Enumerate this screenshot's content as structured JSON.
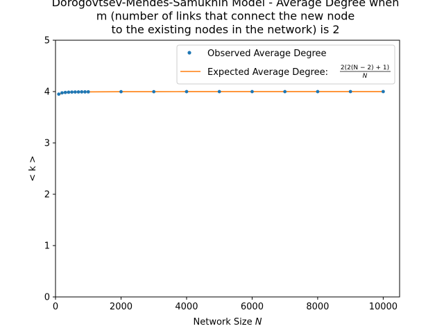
{
  "chart_data": {
    "type": "line",
    "title_lines": [
      "Dorogovtsev-Mendes-Samukhin Model - Average Degree when",
      "m (number of links that connect the new node",
      "to the existing nodes in the network) is 2"
    ],
    "xlabel": "Network Size",
    "xlabel_var": "N",
    "ylabel": "< k >",
    "xlim": [
      0,
      10500
    ],
    "ylim": [
      0,
      5
    ],
    "xticks": [
      0,
      2000,
      4000,
      6000,
      8000,
      10000
    ],
    "yticks": [
      0,
      1,
      2,
      3,
      4,
      5
    ],
    "legend_position": "top-right",
    "series": [
      {
        "name": "Observed Average Degree",
        "kind": "scatter",
        "color": "#1f77b4",
        "x": [
          100,
          200,
          300,
          400,
          500,
          600,
          700,
          800,
          900,
          1000,
          2000,
          3000,
          4000,
          5000,
          6000,
          7000,
          8000,
          9000,
          10000
        ],
        "y": [
          3.95,
          3.975,
          3.983,
          3.988,
          3.99,
          3.992,
          3.993,
          3.994,
          3.994,
          3.995,
          3.998,
          3.998,
          3.999,
          3.999,
          3.999,
          3.999,
          3.999,
          4.0,
          4.0
        ]
      },
      {
        "name": "Expected Average Degree:",
        "formula_numerator": "2(2(N − 2) + 1)",
        "formula_denominator": "N",
        "kind": "line",
        "color": "#ff7f0e",
        "x": [
          100,
          200,
          300,
          400,
          500,
          600,
          700,
          800,
          900,
          1000,
          2000,
          3000,
          4000,
          5000,
          6000,
          7000,
          8000,
          9000,
          10000
        ],
        "y": [
          3.94,
          3.97,
          3.98,
          3.985,
          3.988,
          3.99,
          3.991,
          3.9925,
          3.993,
          3.994,
          3.997,
          3.998,
          3.9985,
          3.9988,
          3.999,
          3.9991,
          3.99925,
          3.9993,
          3.9994
        ]
      }
    ]
  }
}
